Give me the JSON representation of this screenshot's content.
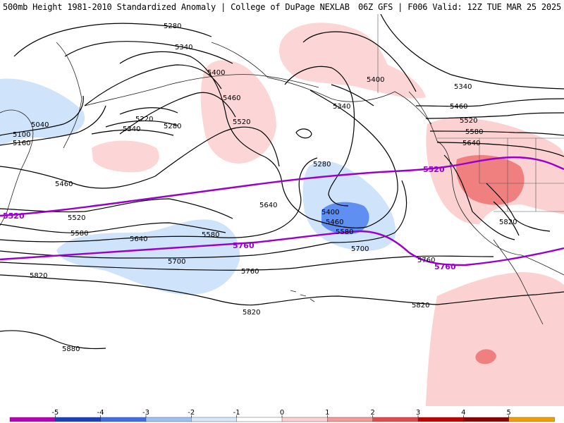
{
  "header": {
    "title_left": "500mb Height 1981-2010 Standardized Anomaly | College of DuPage NEXLAB",
    "title_right": "06Z GFS | F006 Valid: 12Z TUE MAR 25 2025"
  },
  "colors": {
    "contour": "#000000",
    "highlight_contour": "#9900cc",
    "coast": "#222222"
  },
  "contour_labels": [
    "5280",
    "5340",
    "5400",
    "5460",
    "5520",
    "5580",
    "5640",
    "5700",
    "5760",
    "5820",
    "5880",
    "5040",
    "5100",
    "5160",
    "5220"
  ],
  "labels": {
    "l5280_top": "5280",
    "l5340_top": "5340",
    "l5400_w": "5400",
    "l5460_w": "5460",
    "l5220": "5220",
    "l5280_w": "5280",
    "l5340_w": "5340",
    "l5520_w": "5520",
    "l5040": "5040",
    "l5100": "5100",
    "l5160": "5160",
    "l5460_sw": "5460",
    "l5520_s": "5520",
    "l5580_s": "5580",
    "l5640_s": "5640",
    "l5700_s": "5700",
    "l5760_s": "5760",
    "l5820_w": "5820",
    "l5880": "5880",
    "l5640_c": "5640",
    "l5580_c": "5580",
    "l5820_c": "5820",
    "l5400_n": "5400",
    "l5340_n": "5340",
    "l5280_low": "5280",
    "l5400_low": "5400",
    "l5460_low": "5460",
    "l5580_low": "5580",
    "l5700_low": "5700",
    "l5340_ne": "5340",
    "l5460_ne": "5460",
    "l5520_ne": "5520",
    "l5580_ne": "5580",
    "l5640_ne": "5640",
    "l5820_se": "5820",
    "l5760_e": "5760",
    "l5820_s": "5820"
  },
  "highlight_labels": {
    "p5520_w": "5520",
    "p5520_e": "5520",
    "p5760_c": "5760",
    "p5760_e": "5760"
  },
  "colorbar": {
    "ticks": [
      "-5",
      "-4",
      "-3",
      "-2",
      "-1",
      "0",
      "1",
      "2",
      "3",
      "4",
      "5"
    ],
    "colors": [
      "#b900b9",
      "#1a3fbf",
      "#3f6fe8",
      "#9fc0f5",
      "#d6e8fb",
      "#ffffff",
      "#fcd1d1",
      "#f49a9a",
      "#e54a4a",
      "#c40000",
      "#8c0000",
      "#f0a000"
    ]
  }
}
